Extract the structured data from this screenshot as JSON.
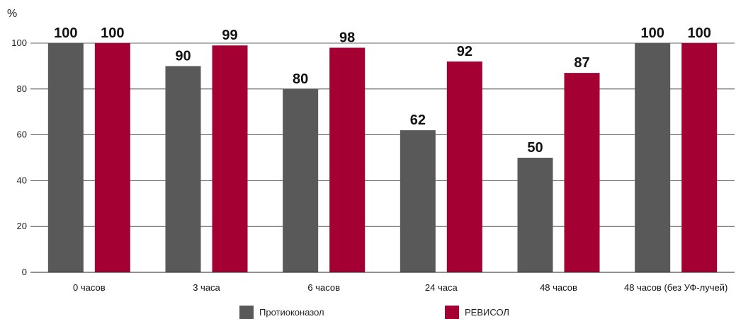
{
  "chart_data": {
    "type": "bar",
    "ylabel": "%",
    "ylim": [
      0,
      100
    ],
    "yticks": [
      0,
      20,
      40,
      60,
      80,
      100
    ],
    "grid": true,
    "legend_placement": "bottom-center",
    "categories": [
      "0 часов",
      "3 часа",
      "6 часов",
      "24 часа",
      "48 часов",
      "48 часов (без УФ-лучей)"
    ],
    "series": [
      {
        "name": "Протиоконазол",
        "color": "#595959",
        "values": [
          100,
          90,
          80,
          62,
          50,
          100
        ]
      },
      {
        "name": "РЕВИСОЛ",
        "color": "#a50034",
        "values": [
          100,
          99,
          98,
          92,
          87,
          100
        ]
      }
    ]
  }
}
